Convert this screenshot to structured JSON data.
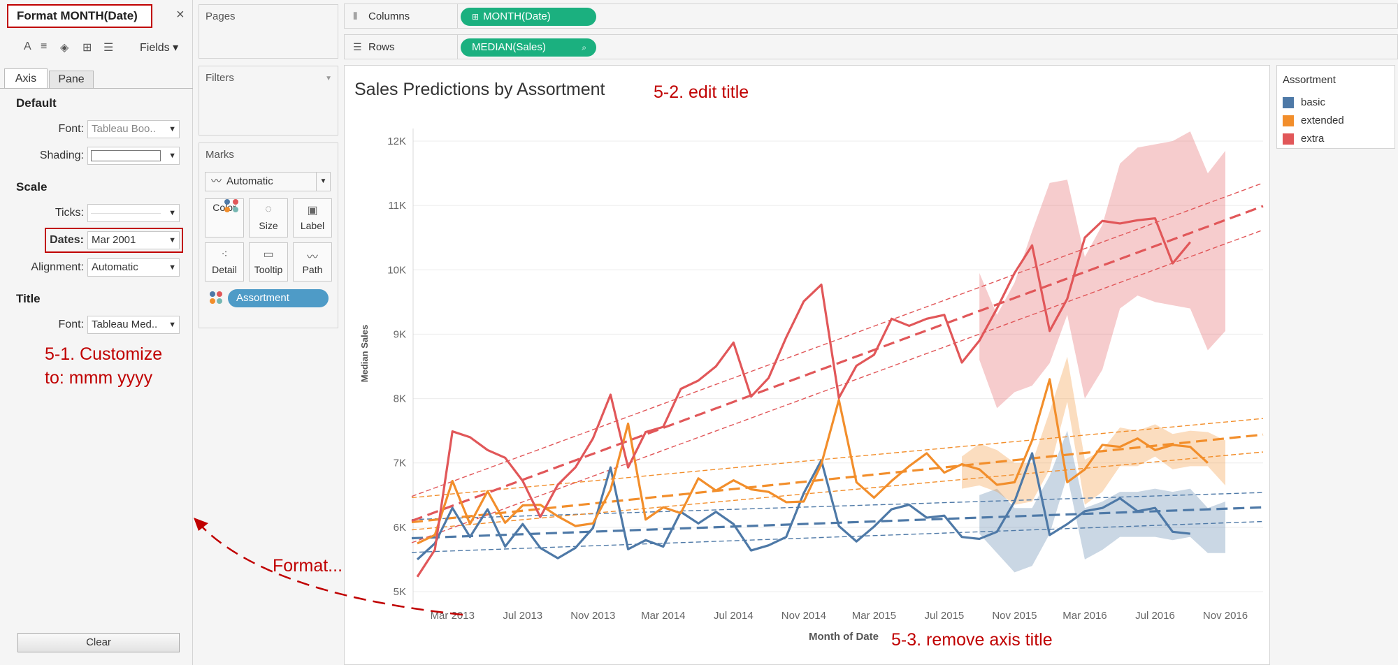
{
  "format_pane": {
    "title": "Format MONTH(Date)",
    "close": "×",
    "fields_label": "Fields ▾",
    "tabs": [
      "Axis",
      "Pane"
    ],
    "default_section": "Default",
    "font_label": "Font:",
    "font_value": "Tableau Boo..",
    "shading_label": "Shading:",
    "scale_section": "Scale",
    "ticks_label": "Ticks:",
    "dates_label": "Dates:",
    "dates_value": "Mar 2001",
    "alignment_label": "Alignment:",
    "alignment_value": "Automatic",
    "title_section": "Title",
    "title_font_label": "Font:",
    "title_font_value": "Tableau Med..",
    "annotation_line1": "5-1. Customize",
    "annotation_line2": "to: mmm yyyy",
    "clear_label": "Clear"
  },
  "cards": {
    "pages": "Pages",
    "filters": "Filters",
    "marks": "Marks",
    "mark_type": "Automatic",
    "mark_buttons": [
      "Color",
      "Size",
      "Label",
      "Detail",
      "Tooltip",
      "Path"
    ],
    "color_pill": "Assortment"
  },
  "shelves": {
    "columns_label": "Columns",
    "columns_pill": "MONTH(Date)",
    "rows_label": "Rows",
    "rows_pill": "MEDIAN(Sales)"
  },
  "view": {
    "title_annotation": "5-2. edit title",
    "axis_annotation": "5-3. remove axis title",
    "format_annotation": "Format..."
  },
  "legend": {
    "title": "Assortment",
    "items": [
      {
        "label": "basic",
        "color": "#4e79a7"
      },
      {
        "label": "extended",
        "color": "#f28e2b"
      },
      {
        "label": "extra",
        "color": "#e15759"
      }
    ]
  },
  "chart_data": {
    "type": "line",
    "title": "Sales Predictions by Assortment",
    "xlabel": "Month of Date",
    "ylabel": "Median Sales",
    "x_ticks": [
      "Mar 2013",
      "Jul 2013",
      "Nov 2013",
      "Mar 2014",
      "Jul 2014",
      "Nov 2014",
      "Mar 2015",
      "Jul 2015",
      "Nov 2015",
      "Mar 2016",
      "Jul 2016",
      "Nov 2016"
    ],
    "y_ticks": [
      "5K",
      "6K",
      "7K",
      "8K",
      "9K",
      "10K",
      "11K",
      "12K"
    ],
    "ylim": [
      5000,
      12000
    ],
    "months": [
      "Jan 2013",
      "Feb 2013",
      "Mar 2013",
      "Apr 2013",
      "May 2013",
      "Jun 2013",
      "Jul 2013",
      "Aug 2013",
      "Sep 2013",
      "Oct 2013",
      "Nov 2013",
      "Dec 2013",
      "Jan 2014",
      "Feb 2014",
      "Mar 2014",
      "Apr 2014",
      "May 2014",
      "Jun 2014",
      "Jul 2014",
      "Aug 2014",
      "Sep 2014",
      "Oct 2014",
      "Nov 2014",
      "Dec 2014",
      "Jan 2015",
      "Feb 2015",
      "Mar 2015",
      "Apr 2015",
      "May 2015",
      "Jun 2015",
      "Jul 2015",
      "Aug 2015",
      "Sep 2015",
      "Oct 2015",
      "Nov 2015",
      "Dec 2015",
      "Jan 2016",
      "Feb 2016",
      "Mar 2016",
      "Apr 2016",
      "May 2016",
      "Jun 2016",
      "Jul 2016",
      "Aug 2016",
      "Sep 2016",
      "Oct 2016",
      "Nov 2016"
    ],
    "series": [
      {
        "name": "basic",
        "color": "#4e79a7",
        "actual": [
          5500,
          5750,
          6300,
          5850,
          6280,
          5700,
          6050,
          5680,
          5520,
          5680,
          5990,
          6930,
          5660,
          5800,
          5700,
          6240,
          6060,
          6240,
          6050,
          5640,
          5720,
          5850,
          6530,
          7040,
          6020,
          5780,
          6010,
          6280,
          6350,
          6150
        ],
        "forecast": [
          6180,
          5850,
          5820,
          5930,
          6400,
          7150,
          5880,
          6050,
          6250,
          6300,
          6450,
          6250,
          6300,
          5930,
          5900
        ],
        "band_upper": [
          6500,
          6600,
          6300,
          6300,
          6800,
          7500,
          6300,
          6400,
          6550,
          6550,
          6600,
          6550,
          6600,
          6300,
          6400
        ],
        "band_lower": [
          5900,
          5600,
          5300,
          5400,
          5900,
          6800,
          5500,
          5650,
          5850,
          5850,
          5850,
          5800,
          5850,
          5600,
          5600
        ],
        "trend": [
          5830,
          6310
        ],
        "trend_upper": [
          6120,
          6540
        ],
        "trend_lower": [
          5610,
          6090
        ]
      },
      {
        "name": "extended",
        "color": "#f28e2b",
        "actual": [
          5750,
          5880,
          6720,
          6050,
          6560,
          6070,
          6340,
          6350,
          6170,
          6020,
          6060,
          6580,
          7610,
          6120,
          6310,
          6220,
          6760,
          6570,
          6730,
          6590,
          6550,
          6390,
          6400,
          6980,
          7980,
          6700,
          6460,
          6720,
          6950,
          7150
        ],
        "forecast": [
          6850,
          6980,
          6900,
          6660,
          6700,
          7350,
          8300,
          6700,
          6900,
          7280,
          7250,
          7380,
          7200,
          7280,
          7250,
          7000
        ],
        "band_upper": [
          7100,
          7300,
          7200,
          7000,
          7000,
          7800,
          8650,
          7050,
          7200,
          7550,
          7500,
          7600,
          7450,
          7500,
          7480,
          7350
        ],
        "band_lower": [
          6600,
          6650,
          6550,
          6350,
          6400,
          6900,
          7950,
          6350,
          6550,
          6950,
          6950,
          7100,
          6900,
          6950,
          6950,
          6650
        ],
        "trend": [
          6080,
          7440
        ],
        "trend_upper": [
          6460,
          7690
        ],
        "trend_lower": [
          5960,
          7170
        ]
      },
      {
        "name": "extra",
        "color": "#e15759",
        "actual": [
          5230,
          5650,
          7490,
          7400,
          7200,
          7080,
          6720,
          6160,
          6660,
          6930,
          7380,
          8060,
          6930,
          7480,
          7560,
          8150,
          8280,
          8500,
          8870,
          8030,
          8320,
          8950,
          9510,
          9770,
          8010,
          8510,
          8680,
          9240,
          9130,
          9240
        ],
        "forecast": [
          9300,
          8560,
          8900,
          9400,
          9950,
          10380,
          9050,
          9550,
          10500,
          10760,
          10720,
          10770,
          10800,
          10100,
          10430
        ],
        "band_upper": [
          9950,
          9300,
          9800,
          10600,
          11350,
          11400,
          10200,
          10700,
          11650,
          11900,
          11950,
          12000,
          12150,
          11500,
          11850
        ],
        "band_lower": [
          8600,
          7850,
          8100,
          8200,
          8550,
          9300,
          8000,
          8450,
          9400,
          9600,
          9500,
          9450,
          9400,
          8750,
          9050
        ],
        "trend": [
          6100,
          10990
        ],
        "trend_upper": [
          6480,
          11350
        ],
        "trend_lower": [
          5760,
          10620
        ]
      }
    ]
  }
}
